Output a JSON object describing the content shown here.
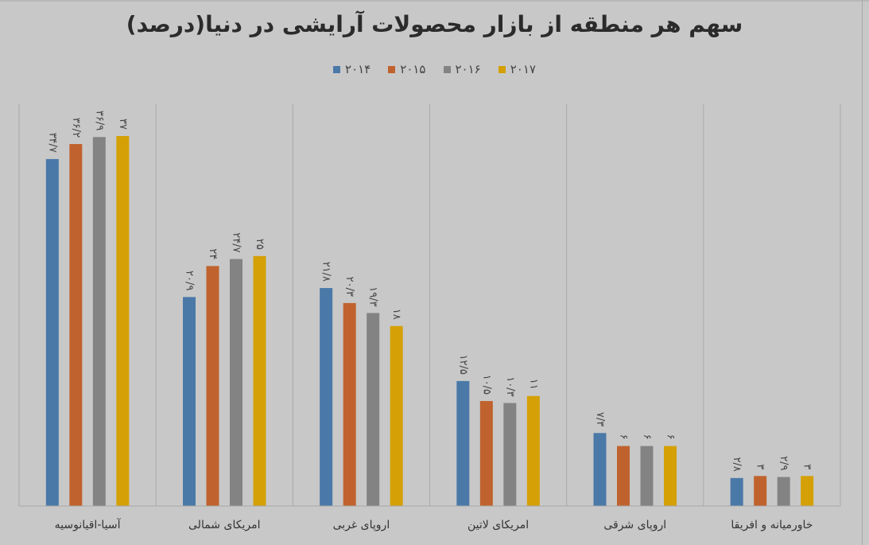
{
  "chart_data": {
    "type": "bar",
    "title": "سهم هر منطقه از بازار محصولات آرایشی در دنیا(درصد)",
    "categories": [
      "آسیا-اقیانوسیه",
      "امریکای شمالی",
      "اروپای غربی",
      "امریکای لاتین",
      "اروپای شرقی",
      "خاورمیانه و افریقا"
    ],
    "series": [
      {
        "name": "۲۰۱۴",
        "color": "#4a79a8",
        "values": [
          34.7,
          20.9,
          21.8,
          12.5,
          7.3,
          2.8
        ],
        "labels": [
          "۳۴/۷",
          "۲۰/۹",
          "۲۱/۸",
          "۱۲/۵",
          "۷/۳",
          "۲/۸"
        ]
      },
      {
        "name": "۲۰۱۵",
        "color": "#c0622d",
        "values": [
          36.2,
          24,
          20.3,
          10.5,
          6,
          3
        ],
        "labels": [
          "۳۶/۲",
          "۲۴",
          "۲۰/۳",
          "۱۰/۵",
          "۶",
          "۳"
        ]
      },
      {
        "name": "۲۰۱۶",
        "color": "#838383",
        "values": [
          36.9,
          24.7,
          19.3,
          10.3,
          6,
          2.9
        ],
        "labels": [
          "۳۶/۹",
          "۲۴/۷",
          "۱۹/۳",
          "۱۰/۳",
          "۶",
          "۲/۹"
        ]
      },
      {
        "name": "۲۰۱۷",
        "color": "#d4a005",
        "values": [
          37,
          25,
          18,
          11,
          6,
          3
        ],
        "labels": [
          "۳۷",
          "۲۵",
          "۱۸",
          "۱۱",
          "۶",
          "۳"
        ]
      }
    ],
    "ylim": [
      0,
      37
    ],
    "legend_position": "top",
    "grid": false,
    "category_separators": true,
    "data_labels_rotated": true
  }
}
